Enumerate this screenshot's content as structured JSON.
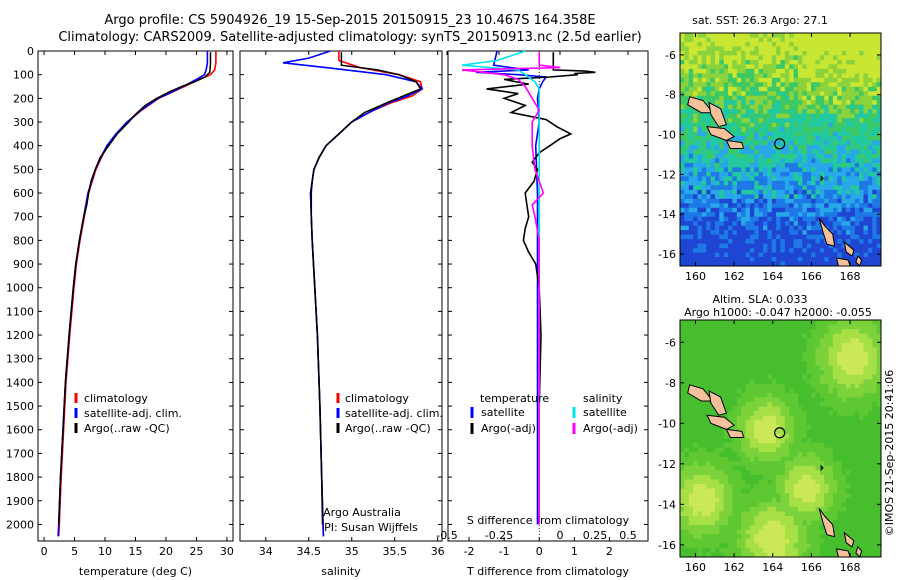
{
  "header": {
    "line1": "Argo profile: CS 5904926_19 15-Sep-2015 20150915_23 10.467S 164.358E",
    "line2": "Climatology: CARS2009. Satellite-adjusted climatology: synTS_20150913.nc (2.5d earlier)"
  },
  "colors": {
    "climatology": "#ff0000",
    "satellite": "#0000ff",
    "argo": "#000000",
    "sal_satellite": "#00e5ee",
    "sal_argo": "#ff00ff",
    "land": "#f5c09a"
  },
  "chart_data": [
    {
      "type": "line",
      "xlabel": "temperature (deg C)",
      "ylim": [
        2070,
        0
      ],
      "xlim": [
        -1,
        31
      ],
      "xticks": [
        "0",
        "5",
        "10",
        "15",
        "20",
        "25",
        "30"
      ],
      "yticks": [
        "0",
        "100",
        "200",
        "300",
        "400",
        "500",
        "600",
        "700",
        "800",
        "900",
        "1000",
        "1100",
        "1200",
        "1300",
        "1400",
        "1500",
        "1600",
        "1700",
        "1800",
        "1900",
        "2000"
      ],
      "legend": [
        "climatology",
        "satellite-adj. clim.",
        "Argo(..raw -QC)"
      ],
      "series": [
        {
          "name": "climatology",
          "depth": [
            0,
            50,
            80,
            100,
            120,
            150,
            180,
            200,
            250,
            300,
            350,
            400,
            450,
            500,
            550,
            600,
            700,
            800,
            900,
            1000,
            1200,
            1400,
            1600,
            1800,
            2000,
            2050
          ],
          "values": [
            28.2,
            28.2,
            28.0,
            27.3,
            25.5,
            23.0,
            20.5,
            18.8,
            16.0,
            13.7,
            11.9,
            10.4,
            9.4,
            8.5,
            7.9,
            7.3,
            6.6,
            5.9,
            5.3,
            4.9,
            4.2,
            3.6,
            3.2,
            2.8,
            2.5,
            2.4
          ]
        },
        {
          "name": "satellite-adj. clim.",
          "depth": [
            0,
            50,
            80,
            100,
            120,
            150,
            180,
            200,
            250,
            300,
            350,
            400,
            450,
            500,
            550,
            600,
            700,
            800,
            900,
            1000,
            1200,
            1400,
            1600,
            1800,
            2000,
            2050
          ],
          "values": [
            26.8,
            26.8,
            26.6,
            26.3,
            25.0,
            22.8,
            20.4,
            18.7,
            15.9,
            13.6,
            11.8,
            10.3,
            9.3,
            8.4,
            7.8,
            7.2,
            6.5,
            5.8,
            5.2,
            4.8,
            4.1,
            3.5,
            3.1,
            2.7,
            2.4,
            2.3
          ]
        },
        {
          "name": "Argo(..raw -QC)",
          "depth": [
            5,
            50,
            90,
            110,
            130,
            150,
            170,
            200,
            230,
            270,
            300,
            350,
            400,
            450,
            500,
            550,
            600,
            650,
            700,
            800,
            900,
            1000,
            1200,
            1400,
            1600,
            1800,
            2000
          ],
          "values": [
            27.3,
            27.3,
            27.2,
            26.4,
            24.7,
            22.6,
            20.8,
            18.5,
            16.6,
            14.9,
            13.9,
            12.0,
            10.6,
            9.2,
            8.4,
            7.7,
            7.3,
            7.0,
            6.5,
            5.8,
            5.2,
            4.8,
            4.1,
            3.5,
            3.1,
            2.7,
            2.4
          ]
        }
      ]
    },
    {
      "type": "line",
      "xlabel": "salinity",
      "ylim": [
        2070,
        0
      ],
      "xlim": [
        33.7,
        36.05
      ],
      "xticks": [
        "34",
        "34.5",
        "35",
        "35.5",
        "36"
      ],
      "legend": [
        "climatology",
        "satellite-adj. clim.",
        "Argo(..raw -QC)"
      ],
      "annotation": [
        "Argo Australia",
        "PI: Susan Wijffels"
      ],
      "series": [
        {
          "name": "climatology",
          "depth": [
            0,
            40,
            70,
            100,
            130,
            160,
            190,
            220,
            260,
            300,
            350,
            400,
            450,
            500,
            550,
            600,
            700,
            800,
            1000,
            1200,
            1500,
            1800,
            2050
          ],
          "values": [
            34.85,
            34.85,
            35.1,
            35.55,
            35.8,
            35.82,
            35.7,
            35.45,
            35.2,
            35.0,
            34.85,
            34.7,
            34.62,
            34.56,
            34.54,
            34.52,
            34.53,
            34.54,
            34.57,
            34.6,
            34.63,
            34.65,
            34.67
          ]
        },
        {
          "name": "satellite-adj. clim.",
          "depth": [
            0,
            30,
            50,
            70,
            100,
            130,
            160,
            190,
            220,
            260,
            300,
            350,
            400,
            450,
            500,
            550,
            600,
            700,
            800,
            1000,
            1200,
            1500,
            1800,
            2050
          ],
          "values": [
            34.75,
            34.5,
            34.2,
            34.7,
            35.4,
            35.75,
            35.82,
            35.65,
            35.42,
            35.2,
            35.0,
            34.85,
            34.7,
            34.62,
            34.56,
            34.54,
            34.52,
            34.53,
            34.54,
            34.57,
            34.6,
            34.63,
            34.65,
            34.67
          ]
        },
        {
          "name": "Argo(..raw -QC)",
          "depth": [
            5,
            60,
            80,
            100,
            130,
            160,
            190,
            220,
            260,
            300,
            350,
            400,
            450,
            500,
            550,
            600,
            700,
            800,
            1000,
            1200,
            1500,
            1800,
            2000
          ],
          "values": [
            34.88,
            34.88,
            35.3,
            35.55,
            35.75,
            35.8,
            35.6,
            35.4,
            35.15,
            35.0,
            34.85,
            34.7,
            34.62,
            34.56,
            34.54,
            34.53,
            34.53,
            34.54,
            34.57,
            34.6,
            34.63,
            34.65,
            34.66
          ]
        }
      ]
    },
    {
      "type": "line",
      "title": "S difference from climatology",
      "xlabel": "T difference from climatology",
      "ylim": [
        2070,
        0
      ],
      "xlim": [
        -2.6,
        3.1
      ],
      "xticks": [
        "-2",
        "-1",
        "0",
        "1",
        "2"
      ],
      "sticks": [
        "-0.5",
        "-0.25",
        "0",
        "0.25",
        "0.5"
      ],
      "legend_titles": [
        "temperature",
        "salinity"
      ],
      "legend": [
        "satellite",
        "Argo(-adj)",
        "satellite",
        "Argo(-adj)"
      ],
      "series": [
        {
          "name": "satellite",
          "variable": "temperature",
          "depth": [
            0,
            60,
            80,
            90,
            100,
            110,
            130,
            160,
            200,
            300,
            400,
            600,
            800,
            1000,
            1500,
            2000
          ],
          "values": [
            -1.2,
            -1.3,
            -0.3,
            -1.8,
            -0.6,
            0.2,
            0.1,
            0.0,
            -0.05,
            0.0,
            -0.1,
            -0.05,
            -0.05,
            -0.05,
            -0.05,
            -0.05
          ]
        },
        {
          "name": "Argo(-adj)",
          "variable": "temperature",
          "depth": [
            5,
            80,
            85,
            90,
            95,
            100,
            110,
            120,
            140,
            160,
            180,
            200,
            230,
            260,
            290,
            320,
            350,
            370,
            400,
            430,
            470,
            500,
            550,
            600,
            650,
            700,
            750,
            800,
            850,
            900,
            1000,
            1200,
            1500,
            2000
          ],
          "values": [
            0.4,
            0.4,
            1.3,
            1.6,
            1.0,
            1.1,
            0.3,
            -1.0,
            -0.3,
            -1.5,
            -0.6,
            -1.0,
            -0.4,
            -0.8,
            0.2,
            0.5,
            0.9,
            0.6,
            0.3,
            0.0,
            -0.2,
            -0.05,
            -0.15,
            -0.4,
            -0.35,
            -0.3,
            -0.4,
            -0.45,
            -0.3,
            -0.1,
            0.0,
            0.05,
            0.0,
            0.0
          ]
        },
        {
          "name": "satellite",
          "variable": "salinity",
          "depth": [
            0,
            40,
            60,
            80,
            100,
            130,
            160,
            200,
            300,
            400,
            600,
            800,
            1000,
            1500,
            2000
          ],
          "values": [
            -0.1,
            -0.3,
            -0.55,
            -0.15,
            -0.1,
            -0.03,
            0.0,
            0.0,
            0.0,
            0.0,
            0.0,
            0.0,
            0.0,
            0.0,
            0.0
          ]
        },
        {
          "name": "Argo(-adj)",
          "variable": "salinity",
          "depth": [
            5,
            60,
            70,
            80,
            100,
            120,
            150,
            200,
            250,
            300,
            400,
            500,
            600,
            650,
            700,
            800,
            900,
            1000,
            1500,
            2000
          ],
          "values": [
            0.0,
            0.0,
            0.15,
            -0.55,
            -0.25,
            -0.15,
            -0.1,
            -0.05,
            0.0,
            -0.05,
            -0.05,
            -0.03,
            0.03,
            -0.05,
            -0.03,
            0.0,
            0.0,
            0.0,
            0.0,
            0.0
          ]
        }
      ]
    },
    {
      "type": "heatmap",
      "title": "sat. SST: 26.3 Argo: 27.1",
      "xticks": [
        "160",
        "162",
        "164",
        "166",
        "168"
      ],
      "yticks": [
        "-6",
        "-8",
        "-10",
        "-12",
        "-14",
        "-16"
      ],
      "xlim": [
        159.2,
        169.6
      ],
      "ylim": [
        -16.6,
        -4.9
      ],
      "float_position": {
        "lon": 164.358,
        "lat": -10.467
      }
    },
    {
      "type": "heatmap",
      "title_lines": [
        "Altim. SLA: 0.033",
        "Argo h1000: -0.047 h2000: -0.055"
      ],
      "xticks": [
        "160",
        "162",
        "164",
        "166",
        "168"
      ],
      "yticks": [
        "-6",
        "-8",
        "-10",
        "-12",
        "-14",
        "-16"
      ],
      "xlim": [
        159.2,
        169.6
      ],
      "ylim": [
        -16.6,
        -4.9
      ],
      "float_position": {
        "lon": 164.358,
        "lat": -10.467
      }
    }
  ],
  "credit": "©IMOS 21-Sep-2015 20:41:06"
}
